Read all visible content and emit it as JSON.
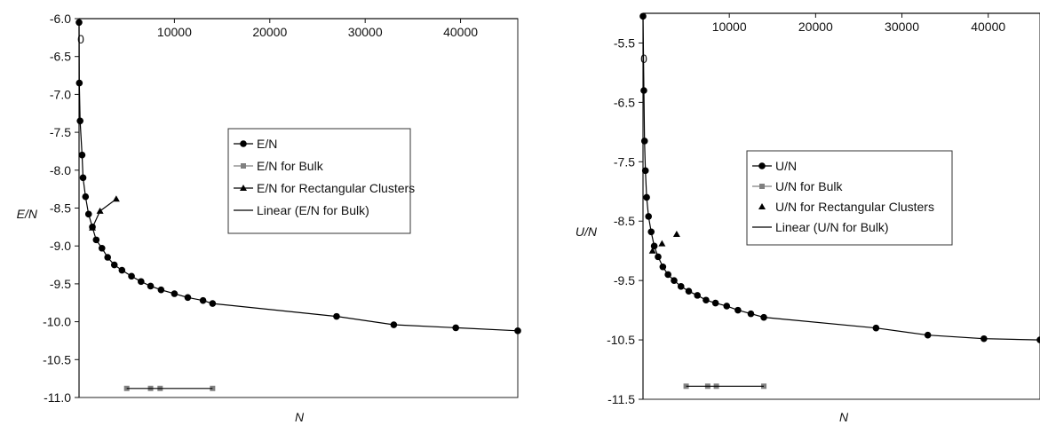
{
  "chart_data": [
    {
      "type": "line",
      "xlabel": "N",
      "ylabel": "E/N",
      "xlim": [
        0,
        46000
      ],
      "ylim": [
        -11.0,
        -6.0
      ],
      "x_ticks": [
        10000,
        20000,
        30000,
        40000
      ],
      "x_tick_labels": [
        "10000",
        "20000",
        "30000",
        "40000"
      ],
      "y_ticks": [
        -6.0,
        -6.5,
        -7.0,
        -7.5,
        -8.0,
        -8.5,
        -9.0,
        -9.5,
        -10.0,
        -10.5,
        -11.0
      ],
      "y_tick_labels": [
        "-6.0",
        "-6.5",
        "-7.0",
        "-7.5",
        "-8.0",
        "-8.5",
        "-9.0",
        "-9.5",
        "-10.0",
        "-10.5",
        "-11.0"
      ],
      "x_axis_position": "top",
      "grid": false,
      "legend_position": "center",
      "series": [
        {
          "name": "E/N",
          "marker": "circle",
          "color": "#000000",
          "x": [
            0,
            30,
            110,
            320,
            420,
            680,
            1000,
            1400,
            1800,
            2400,
            3000,
            3700,
            4500,
            5500,
            6500,
            7500,
            8600,
            10000,
            11400,
            13000,
            14000,
            27000,
            33000,
            39500,
            46000
          ],
          "y": [
            -6.05,
            -6.85,
            -7.35,
            -7.8,
            -8.1,
            -8.35,
            -8.58,
            -8.75,
            -8.92,
            -9.03,
            -9.15,
            -9.25,
            -9.32,
            -9.4,
            -9.47,
            -9.53,
            -9.58,
            -9.63,
            -9.68,
            -9.72,
            -9.76,
            -9.93,
            -10.04,
            -10.08,
            -10.12
          ]
        },
        {
          "name": "E/N for Bulk",
          "marker": "square",
          "color": "#808080",
          "x": [
            5000,
            7500,
            8500,
            14000
          ],
          "y": [
            -10.88,
            -10.88,
            -10.88,
            -10.88
          ]
        },
        {
          "name": "E/N for Rectangular Clusters",
          "marker": "triangle",
          "color": "#000000",
          "x": [
            1400,
            2200,
            3900
          ],
          "y": [
            -8.76,
            -8.54,
            -8.38
          ]
        },
        {
          "name": "Linear (E/N for Bulk)",
          "marker": "none",
          "color": "#000000",
          "x": [
            5000,
            14000
          ],
          "y": [
            -10.88,
            -10.88
          ]
        }
      ],
      "annotations": [
        "0"
      ]
    },
    {
      "type": "line",
      "xlabel": "N",
      "ylabel": "U/N",
      "xlim": [
        0,
        46000
      ],
      "ylim": [
        -11.5,
        -5.0
      ],
      "x_ticks": [
        10000,
        20000,
        30000,
        40000
      ],
      "x_tick_labels": [
        "10000",
        "20000",
        "30000",
        "40000"
      ],
      "y_ticks": [
        -5.5,
        -6.5,
        -7.5,
        -8.5,
        -9.5,
        -10.5,
        -11.5
      ],
      "y_tick_labels": [
        "-5.5",
        "-6.5",
        "-7.5",
        "-8.5",
        "-9.5",
        "-10.5",
        "-11.5"
      ],
      "x_axis_position": "top",
      "grid": false,
      "legend_position": "center",
      "series": [
        {
          "name": "U/N",
          "marker": "circle",
          "color": "#000000",
          "x": [
            0,
            100,
            180,
            280,
            420,
            640,
            950,
            1300,
            1750,
            2300,
            2900,
            3600,
            4400,
            5300,
            6300,
            7300,
            8400,
            9700,
            11000,
            12500,
            14000,
            27000,
            33000,
            39500,
            46000
          ],
          "y": [
            -5.05,
            -6.3,
            -7.15,
            -7.65,
            -8.1,
            -8.42,
            -8.68,
            -8.92,
            -9.1,
            -9.27,
            -9.4,
            -9.5,
            -9.6,
            -9.68,
            -9.75,
            -9.83,
            -9.88,
            -9.93,
            -10.0,
            -10.06,
            -10.12,
            -10.3,
            -10.42,
            -10.48,
            -10.5
          ]
        },
        {
          "name": "U/N for Bulk",
          "marker": "square",
          "color": "#808080",
          "x": [
            5000,
            7500,
            8500,
            14000
          ],
          "y": [
            -11.28,
            -11.28,
            -11.28,
            -11.28
          ]
        },
        {
          "name": "U/N for Rectangular Clusters",
          "marker": "triangle",
          "color": "#000000",
          "x": [
            1100,
            2200,
            3900
          ],
          "y": [
            -9.0,
            -8.88,
            -8.72
          ]
        },
        {
          "name": "Linear (U/N for Bulk)",
          "marker": "none",
          "color": "#000000",
          "x": [
            5000,
            14000
          ],
          "y": [
            -11.28,
            -11.28
          ]
        }
      ],
      "annotations": [
        "0"
      ]
    }
  ]
}
